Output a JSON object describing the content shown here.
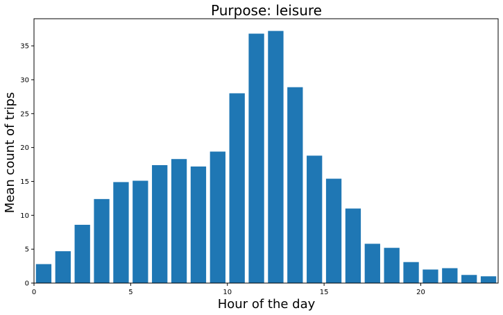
{
  "chart_data": {
    "type": "bar",
    "title": "Purpose: leisure",
    "xlabel": "Hour of the day",
    "ylabel": "Mean count of trips",
    "x": [
      0,
      1,
      2,
      3,
      4,
      5,
      6,
      7,
      8,
      9,
      10,
      11,
      12,
      13,
      14,
      15,
      16,
      17,
      18,
      19,
      20,
      21,
      22,
      23
    ],
    "values": [
      2.8,
      4.7,
      8.6,
      12.4,
      14.9,
      15.1,
      17.4,
      18.3,
      17.2,
      19.4,
      28.0,
      36.8,
      37.2,
      28.9,
      18.8,
      15.4,
      11.0,
      5.8,
      5.2,
      3.1,
      2.0,
      2.2,
      1.2,
      1.0
    ],
    "xlim": [
      0,
      24
    ],
    "ylim": [
      0,
      39
    ],
    "xticks": [
      0,
      5,
      10,
      15,
      20
    ],
    "yticks": [
      0,
      5,
      10,
      15,
      20,
      25,
      30,
      35
    ],
    "bar_color": "#1f77b4",
    "grid": false
  }
}
